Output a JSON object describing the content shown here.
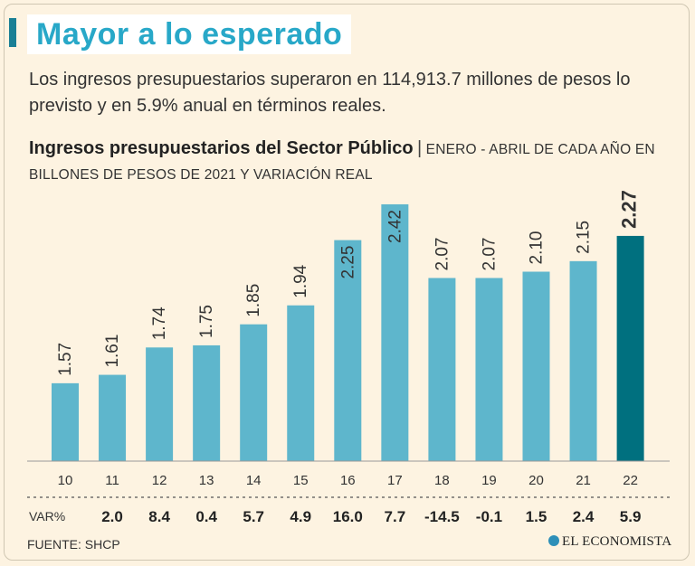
{
  "headline": "Mayor a lo esperado",
  "subtitle": "Los ingresos presupuestarios superaron en 114,913.7 millones de pesos lo previsto y en 5.9% anual en términos reales.",
  "chart_heading": "Ingresos presupuestarios del Sector Público",
  "chart_separator": "|",
  "chart_unit": "ENERO - ABRIL DE CADA AÑO EN BILLONES DE PESOS DE 2021 Y VARIACIÓN REAL",
  "footer_source": "FUENTE: SHCP",
  "brand_name": "EL ECONOMISTA",
  "colors": {
    "bar": "#5eb6cc",
    "highlight_bar": "#00707f",
    "headline": "#28a8c8"
  },
  "chart_data": {
    "type": "bar",
    "title": "Ingresos presupuestarios del Sector Público",
    "categories": [
      "10",
      "11",
      "12",
      "13",
      "14",
      "15",
      "16",
      "17",
      "18",
      "19",
      "20",
      "21",
      "22"
    ],
    "values": [
      1.57,
      1.61,
      1.74,
      1.75,
      1.85,
      1.94,
      2.25,
      2.42,
      2.07,
      2.07,
      2.1,
      2.15,
      2.27
    ],
    "value_labels": [
      "1.57",
      "1.61",
      "1.74",
      "1.75",
      "1.85",
      "1.94",
      "2.25",
      "2.42",
      "2.07",
      "2.07",
      "2.10",
      "2.15",
      "2.27"
    ],
    "variation_label": "VAR%",
    "variation": [
      "2.0",
      "8.4",
      "0.4",
      "5.7",
      "4.9",
      "16.0",
      "7.7",
      "-14.5",
      "-0.1",
      "1.5",
      "2.4",
      "5.9"
    ],
    "highlight_index": 12,
    "ylim": [
      1.2,
      2.42
    ],
    "xlabel": "",
    "ylabel": "",
    "grid": false
  }
}
